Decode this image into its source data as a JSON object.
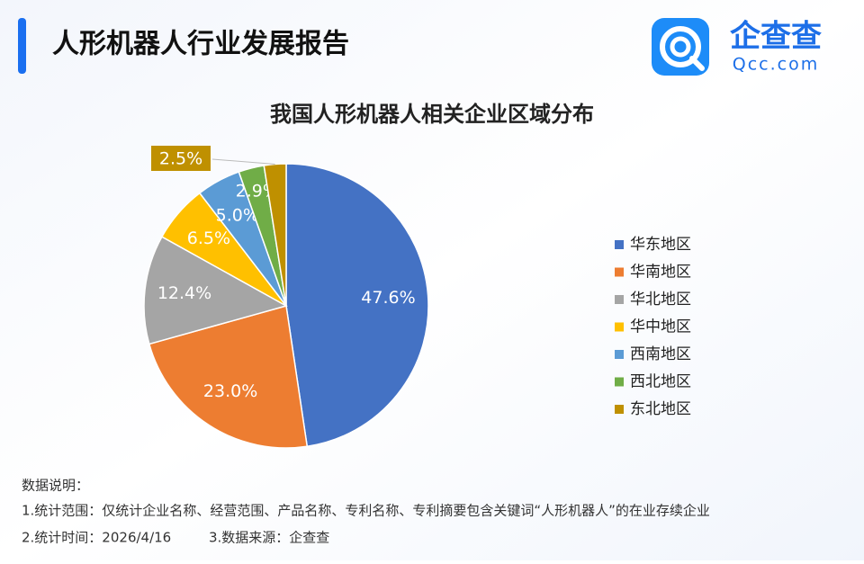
{
  "header": {
    "title": "人形机器人行业发展报告"
  },
  "logo": {
    "name": "企查查",
    "site": "Qcc.com"
  },
  "chart_data": {
    "type": "pie",
    "title": "我国人形机器人相关企业区域分布",
    "categories": [
      "华东地区",
      "华南地区",
      "华北地区",
      "华中地区",
      "西南地区",
      "西北地区",
      "东北地区"
    ],
    "values": [
      47.6,
      23.0,
      12.4,
      6.5,
      5.0,
      2.9,
      2.5
    ],
    "value_labels": [
      "47.6%",
      "23.0%",
      "12.4%",
      "6.5%",
      "5.0%",
      "2.9%",
      "2.5%"
    ],
    "colors": [
      "#4472c4",
      "#ed7d31",
      "#a5a5a5",
      "#ffc000",
      "#5b9bd5",
      "#70ad47",
      "#bf9000"
    ],
    "legend": "right"
  },
  "notes": {
    "heading": "数据说明：",
    "lines": [
      "1.统计范围：仅统计企业名称、经营范围、产品名称、专利名称、专利摘要包含关键词“人形机器人”的在业存续企业",
      "2.统计时间：2026/4/16",
      "3.数据来源：企查查"
    ]
  }
}
